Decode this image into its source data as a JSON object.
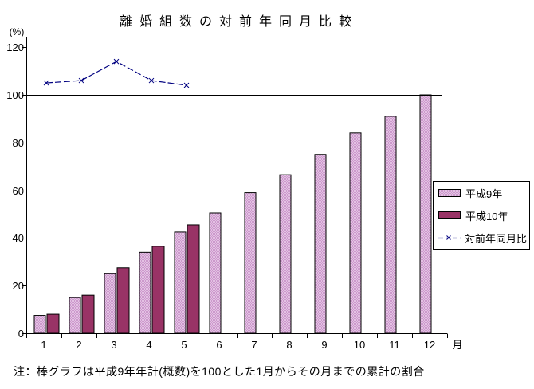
{
  "colors": {
    "background": "#ffffff",
    "axis": "#000000",
    "text": "#000000",
    "h9_bar": "#cc99cc",
    "h9_bar_dot": "#e3c1e3",
    "h10_bar": "#993366",
    "line": "#000080"
  },
  "chart_data": {
    "type": "bar",
    "title": "離婚組数の対前年同月比較",
    "xlabel": "月",
    "ylabel": "(%)",
    "categories": [
      "1",
      "2",
      "3",
      "4",
      "5",
      "6",
      "7",
      "8",
      "9",
      "10",
      "11",
      "12"
    ],
    "yticks": [
      0,
      20,
      40,
      60,
      80,
      100,
      120
    ],
    "ylim": [
      0,
      125
    ],
    "reference_line": 100,
    "grid": "reference-line-only",
    "legend_position": "right",
    "series": [
      {
        "name": "平成9年",
        "type": "bar",
        "color": "#cc99cc",
        "pattern": "dotted",
        "values": [
          7.5,
          15,
          25,
          34,
          42.5,
          50.5,
          59,
          66.5,
          75,
          84,
          91,
          100
        ]
      },
      {
        "name": "平成10年",
        "type": "bar",
        "color": "#993366",
        "pattern": "solid",
        "values": [
          8,
          16,
          27.5,
          36.5,
          45.5,
          null,
          null,
          null,
          null,
          null,
          null,
          null
        ]
      },
      {
        "name": "対前年同月比",
        "type": "line",
        "color": "#000080",
        "marker": "x",
        "dashed": true,
        "values": [
          105,
          106,
          114,
          106,
          104,
          null,
          null,
          null,
          null,
          null,
          null,
          null
        ]
      }
    ],
    "note": "注：棒グラフは平成9年年計(概数)を100とした1月からその月までの累計の割合"
  }
}
